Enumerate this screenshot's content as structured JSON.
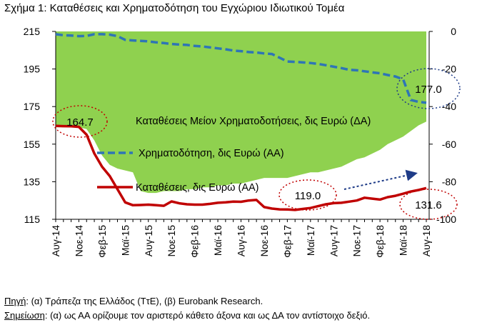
{
  "title": "Σχήμα 1: Καταθέσεις και Χρηματοδότηση του Εγχώριου Ιδιωτικού Τομέα",
  "colors": {
    "area": "#8fd14f",
    "financing": "#2e75b6",
    "deposits": "#c00000",
    "annotation": "#c00000",
    "arrow": "#1f3c88"
  },
  "notes": {
    "source_label": "Πηγή",
    "source_text": ": (α) Τράπεζα της Ελλάδος (ΤτΕ), (β) Eurobank Research.",
    "remark_label": "Σημείωση",
    "remark_text": ": (α) ως ΑΑ ορίζουμε τον αριστερό κάθετο άξονα και ως ΔΑ τον αντίστοιχο δεξιό."
  },
  "chart_data": {
    "type": "line",
    "x": [
      "Αυγ-14",
      "Σεπ-14",
      "Οκτ-14",
      "Νοε-14",
      "Δεκ-14",
      "Ιαν-15",
      "Φεβ-15",
      "Μαρ-15",
      "Απρ-15",
      "Μαϊ-15",
      "Ιουν-15",
      "Ιουλ-15",
      "Αυγ-15",
      "Σεπ-15",
      "Οκτ-15",
      "Νοε-15",
      "Δεκ-15",
      "Ιαν-16",
      "Φεβ-16",
      "Μαρ-16",
      "Απρ-16",
      "Μαϊ-16",
      "Ιουν-16",
      "Ιουλ-16",
      "Αυγ-16",
      "Σεπ-16",
      "Οκτ-16",
      "Νοε-16",
      "Δεκ-16",
      "Ιαν-17",
      "Φεβ-17",
      "Μαρ-17",
      "Απρ-17",
      "Μαϊ-17",
      "Ιουν-17",
      "Ιουλ-17",
      "Αυγ-17",
      "Σεπ-17",
      "Οκτ-17",
      "Νοε-17",
      "Δεκ-17",
      "Ιαν-18",
      "Φεβ-18",
      "Μαρ-18",
      "Απρ-18",
      "Μαϊ-18",
      "Ιουν-18",
      "Ιουλ-18",
      "Αυγ-18"
    ],
    "x_tick_labels": [
      "Αυγ-14",
      "Νοε-14",
      "Φεβ-15",
      "Μαϊ-15",
      "Αυγ-15",
      "Νοε-15",
      "Φεβ-16",
      "Μαϊ-16",
      "Αυγ-16",
      "Νοε-16",
      "Φεβ-17",
      "Μαϊ-17",
      "Αυγ-17",
      "Νοε-17",
      "Φεβ-18",
      "Μαϊ-18",
      "Αυγ-18"
    ],
    "y_left": {
      "ylim": [
        115,
        215
      ],
      "ticks": [
        115,
        135,
        155,
        175,
        195,
        215
      ]
    },
    "y_right": {
      "ylim": [
        -100,
        0
      ],
      "ticks": [
        -100,
        -80,
        -60,
        -40,
        -20,
        0
      ]
    },
    "series": [
      {
        "name": "Καταθέσεις Μείον Χρηματοδοτήσεις, δις Ευρώ (ΔΑ)",
        "kind": "area",
        "axis": "right",
        "values": [
          -51,
          -51,
          -51,
          -51,
          -52,
          -58,
          -66,
          -71,
          -73,
          -74,
          -75,
          -85,
          -86,
          -86,
          -85,
          -85,
          -85,
          -84,
          -84,
          -83,
          -83,
          -82,
          -82,
          -81,
          -81,
          -80,
          -79,
          -78,
          -78,
          -78,
          -78,
          -77,
          -76,
          -75,
          -75,
          -74,
          -73,
          -72,
          -70,
          -68,
          -67,
          -65,
          -63,
          -60,
          -58,
          -56,
          -53,
          -50,
          -48
        ]
      },
      {
        "name": "Χρηματοδότηση, δις Ευρώ (ΑΑ)",
        "kind": "line-dashed",
        "axis": "left",
        "values": [
          213.5,
          213,
          212.8,
          212.5,
          212.6,
          213.5,
          213.5,
          213.3,
          212.5,
          210.5,
          210.2,
          210,
          209.7,
          209.2,
          208.8,
          208.3,
          208,
          207.8,
          207.3,
          207,
          206.5,
          206,
          205.5,
          204.8,
          204.5,
          204,
          203.8,
          203.3,
          203,
          201,
          199,
          198.8,
          198.5,
          198.2,
          197.7,
          197,
          196.2,
          195.5,
          194.6,
          194.3,
          193.8,
          193.2,
          192.7,
          191.8,
          191,
          189.5,
          178.5,
          177.5,
          177
        ]
      },
      {
        "name": "Καταθέσεις, δις Ευρώ (ΑΑ)",
        "kind": "line",
        "axis": "left",
        "values": [
          164.7,
          164.6,
          164.5,
          164.2,
          160,
          150,
          143,
          138,
          131,
          124,
          122.5,
          122.6,
          122.8,
          122.5,
          122.2,
          124.5,
          123.5,
          123,
          122.8,
          122.8,
          123.2,
          123.8,
          124,
          124.4,
          124.3,
          125,
          125.3,
          121.5,
          120.7,
          120.3,
          120.2,
          120,
          120.5,
          121,
          122,
          123,
          123.6,
          123.8,
          124.4,
          125,
          126.5,
          126,
          125.5,
          126.8,
          127.5,
          128.6,
          129.8,
          130.6,
          131.6
        ]
      }
    ],
    "annotations": [
      {
        "label": "164.7",
        "series": "Καταθέσεις, δις Ευρώ (ΑΑ)",
        "x": "Αυγ-14"
      },
      {
        "label": "119.0",
        "series": "Καταθέσεις, δις Ευρώ (ΑΑ)",
        "x": "Μαρ-17"
      },
      {
        "label": "131.6",
        "series": "Καταθέσεις, δις Ευρώ (ΑΑ)",
        "x": "Αυγ-18"
      },
      {
        "label": "177.0",
        "series": "Χρηματοδότηση, δις Ευρώ (ΑΑ)",
        "x": "Αυγ-18"
      }
    ],
    "legend": "inside-center",
    "grid": false
  }
}
